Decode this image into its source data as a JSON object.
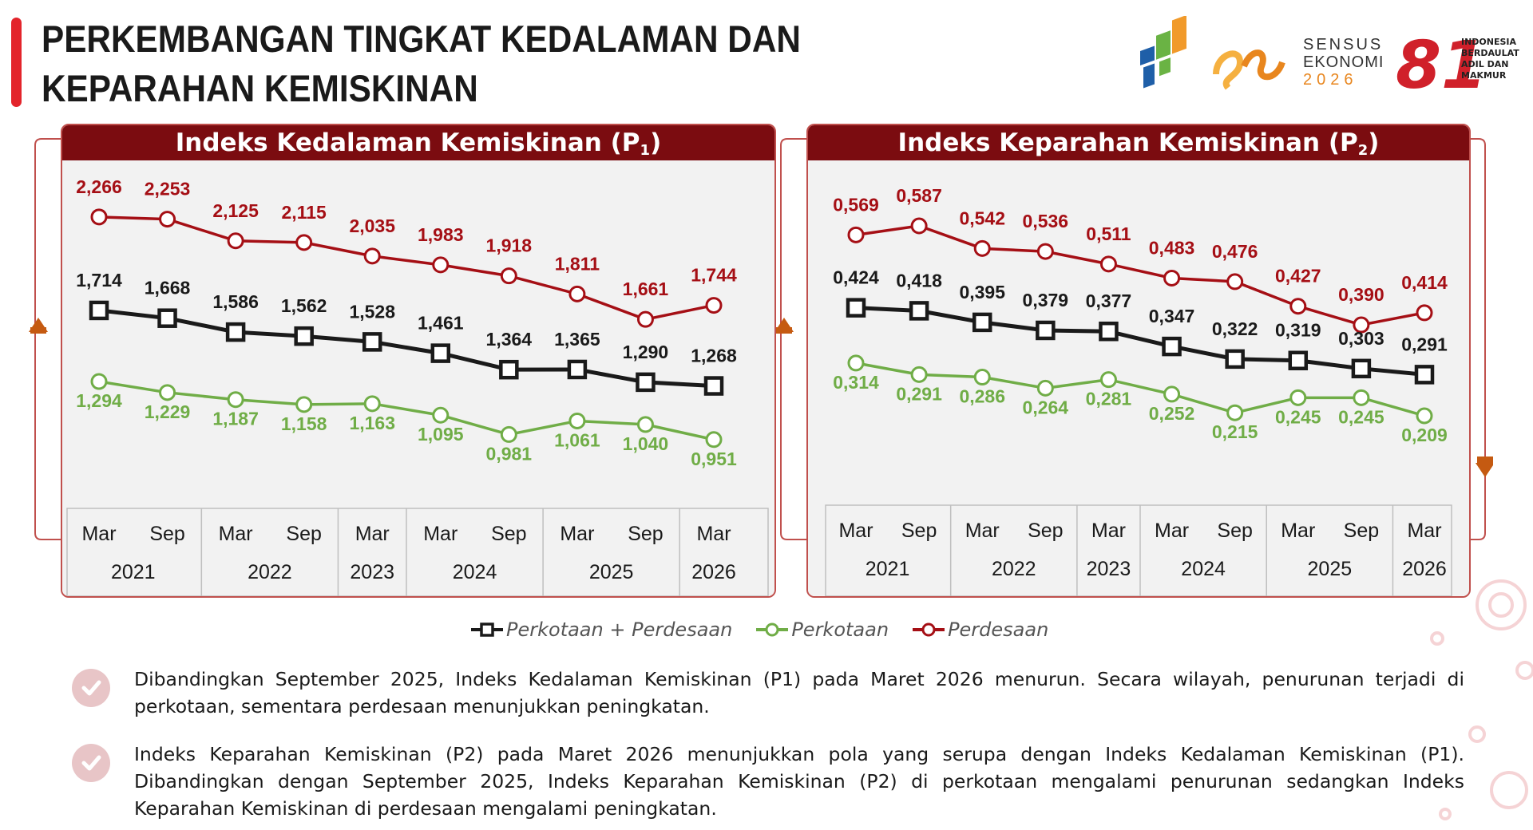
{
  "page": {
    "title": "PERKEMBANGAN TINGKAT KEDALAMAN DAN KEPARAHAN KEMISKINAN",
    "accent_color": "#e3242b",
    "logos": {
      "census_line1": "SENSUS",
      "census_line2": "EKONOMI",
      "census_year": "2026",
      "anniv_line1": "INDONESIA",
      "anniv_line2": "BERDAULAT",
      "anniv_line3": "ADIL DAN",
      "anniv_line4": "MAKMUR"
    }
  },
  "legend": [
    "Perkotaan + Perdesaan",
    "Perkotaan",
    "Perdesaan"
  ],
  "colors": {
    "total": "#1a1a1a",
    "urban": "#70ad47",
    "rural": "#a50f15",
    "header": "#7b0c10",
    "frame": "#c0504d",
    "arrow": "#c55a11"
  },
  "chart_data": [
    {
      "type": "line",
      "title": "Indeks Kedalaman Kemiskinan (P1)",
      "title_main": "Indeks Kedalaman Kemiskinan (P",
      "title_sub": "1",
      "title_end": ")",
      "x": [
        "Mar",
        "Sep",
        "Mar",
        "Sep",
        "Mar",
        "Mar",
        "Sep",
        "Mar",
        "Sep",
        "Mar"
      ],
      "years": [
        {
          "label": "2021",
          "span": 2
        },
        {
          "label": "2022",
          "span": 2
        },
        {
          "label": "2023",
          "span": 1
        },
        {
          "label": "2024",
          "span": 2
        },
        {
          "label": "2025",
          "span": 2
        },
        {
          "label": "2026",
          "span": 1
        }
      ],
      "series": [
        {
          "name": "Perdesaan",
          "key": "rural",
          "values": [
            2.266,
            2.253,
            2.125,
            2.115,
            2.035,
            1.983,
            1.918,
            1.811,
            1.661,
            1.744
          ],
          "labels": [
            "2,266",
            "2,253",
            "2,125",
            "2,115",
            "2,035",
            "1,983",
            "1,918",
            "1,811",
            "1,661",
            "1,744"
          ]
        },
        {
          "name": "Perkotaan + Perdesaan",
          "key": "total",
          "values": [
            1.714,
            1.668,
            1.586,
            1.562,
            1.528,
            1.461,
            1.364,
            1.365,
            1.29,
            1.268
          ],
          "labels": [
            "1,714",
            "1,668",
            "1,586",
            "1,562",
            "1,528",
            "1,461",
            "1,364",
            "1,365",
            "1,290",
            "1,268"
          ]
        },
        {
          "name": "Perkotaan",
          "key": "urban",
          "values": [
            1.294,
            1.229,
            1.187,
            1.158,
            1.163,
            1.095,
            0.981,
            1.061,
            1.04,
            0.951
          ],
          "labels": [
            "1,294",
            "1,229",
            "1,187",
            "1,158",
            "1,163",
            "1,095",
            "0,981",
            "1,061",
            "1,040",
            "0,951"
          ]
        }
      ]
    },
    {
      "type": "line",
      "title": "Indeks Keparahan Kemiskinan (P2)",
      "title_main": "Indeks Keparahan Kemiskinan (P",
      "title_sub": "2",
      "title_end": ")",
      "x": [
        "Mar",
        "Sep",
        "Mar",
        "Sep",
        "Mar",
        "Mar",
        "Sep",
        "Mar",
        "Sep",
        "Mar"
      ],
      "years": [
        {
          "label": "2021",
          "span": 2
        },
        {
          "label": "2022",
          "span": 2
        },
        {
          "label": "2023",
          "span": 1
        },
        {
          "label": "2024",
          "span": 2
        },
        {
          "label": "2025",
          "span": 2
        },
        {
          "label": "2026",
          "span": 1
        }
      ],
      "series": [
        {
          "name": "Perdesaan",
          "key": "rural",
          "values": [
            0.569,
            0.587,
            0.542,
            0.536,
            0.511,
            0.483,
            0.476,
            0.427,
            0.39,
            0.414
          ],
          "labels": [
            "0,569",
            "0,587",
            "0,542",
            "0,536",
            "0,511",
            "0,483",
            "0,476",
            "0,427",
            "0,390",
            "0,414"
          ]
        },
        {
          "name": "Perkotaan + Perdesaan",
          "key": "total",
          "values": [
            0.424,
            0.418,
            0.395,
            0.379,
            0.377,
            0.347,
            0.322,
            0.319,
            0.303,
            0.291
          ],
          "labels": [
            "0,424",
            "0,418",
            "0,395",
            "0,379",
            "0,377",
            "0,347",
            "0,322",
            "0,319",
            "0,303",
            "0,291"
          ]
        },
        {
          "name": "Perkotaan",
          "key": "urban",
          "values": [
            0.314,
            0.291,
            0.286,
            0.264,
            0.281,
            0.252,
            0.215,
            0.245,
            0.245,
            0.209
          ],
          "labels": [
            "0,314",
            "0,291",
            "0,286",
            "0,264",
            "0,281",
            "0,252",
            "0,215",
            "0,245",
            "0,245",
            "0,209"
          ]
        }
      ]
    }
  ],
  "notes": [
    "Dibandingkan September 2025, Indeks Kedalaman Kemiskinan (P1) pada Maret 2026 menurun. Secara wilayah, penurunan terjadi di perkotaan, sementara perdesaan menunjukkan peningkatan.",
    "Indeks Keparahan Kemiskinan (P2) pada Maret 2026 menunjukkan pola yang serupa dengan Indeks Kedalaman Kemiskinan (P1). Dibandingkan dengan September 2025, Indeks Keparahan Kemiskinan (P2) di perkotaan mengalami penurunan sedangkan Indeks Keparahan Kemiskinan di perdesaan mengalami peningkatan."
  ]
}
